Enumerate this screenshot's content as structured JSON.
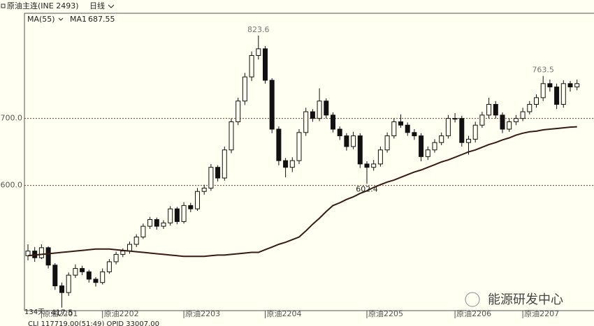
{
  "chart_data": {
    "type": "candlestick",
    "title": "原油主连(INE 2493)",
    "period": "日线",
    "indicator": "MA(55)",
    "ma_series": {
      "name": "MA1",
      "color": "#3a1a10"
    },
    "days_label": "134天",
    "status": "CLI  117719.00(51:49)   OPID  33007.00",
    "watermark": "能源研发中心",
    "ylim": [
      413,
      856
    ],
    "yticks": [
      {
        "value": 600,
        "label": "600.0"
      },
      {
        "value": 700,
        "label": "700.0"
      }
    ],
    "grid": true,
    "up_color": "#fffff2",
    "down_color": "#111111",
    "categories": [
      null,
      null,
      "原油2201",
      null,
      null,
      null,
      null,
      null,
      null,
      null,
      null,
      "原油2202",
      null,
      null,
      null,
      null,
      null,
      null,
      null,
      null,
      null,
      null,
      null,
      "原油2203",
      null,
      null,
      null,
      null,
      null,
      null,
      null,
      null,
      null,
      null,
      null,
      "原油2204",
      null,
      null,
      null,
      null,
      null,
      null,
      null,
      null,
      null,
      null,
      null,
      null,
      null,
      null,
      "原油2205",
      null,
      null,
      null,
      null,
      null,
      null,
      null,
      null,
      null,
      null,
      null,
      null,
      "原油2206",
      null,
      null,
      null,
      null,
      null,
      null,
      null,
      null,
      null,
      "原油2207",
      null,
      null,
      null,
      null,
      null,
      null,
      null,
      null
    ],
    "ohlc": [
      [
        495,
        512,
        488,
        502
      ],
      [
        502,
        508,
        486,
        492
      ],
      [
        492,
        512,
        490,
        507
      ],
      [
        507,
        509,
        476,
        481
      ],
      [
        481,
        484,
        444,
        450
      ],
      [
        450,
        455,
        417.5,
        440
      ],
      [
        440,
        470,
        435,
        466
      ],
      [
        466,
        482,
        462,
        476
      ],
      [
        476,
        480,
        466,
        471
      ],
      [
        471,
        474,
        455,
        460
      ],
      [
        460,
        463,
        449,
        455
      ],
      [
        455,
        476,
        452,
        471
      ],
      [
        471,
        490,
        468,
        486
      ],
      [
        486,
        501,
        482,
        497
      ],
      [
        497,
        506,
        493,
        502
      ],
      [
        502,
        516,
        498,
        512
      ],
      [
        512,
        527,
        508,
        523
      ],
      [
        523,
        543,
        520,
        539
      ],
      [
        539,
        553,
        535,
        549
      ],
      [
        549,
        552,
        534,
        539
      ],
      [
        539,
        548,
        535,
        544
      ],
      [
        544,
        569,
        540,
        565
      ],
      [
        565,
        568,
        542,
        546
      ],
      [
        546,
        575,
        543,
        570
      ],
      [
        570,
        574,
        560,
        565
      ],
      [
        565,
        596,
        562,
        591
      ],
      [
        591,
        601,
        586,
        596
      ],
      [
        596,
        632,
        592,
        627
      ],
      [
        627,
        630,
        606,
        611
      ],
      [
        611,
        658,
        607,
        653
      ],
      [
        653,
        700,
        648,
        695
      ],
      [
        695,
        731,
        690,
        726
      ],
      [
        726,
        768,
        720,
        762
      ],
      [
        762,
        800,
        756,
        794
      ],
      [
        794,
        823.6,
        788,
        804
      ],
      [
        804,
        808,
        752,
        757
      ],
      [
        757,
        760,
        678,
        684
      ],
      [
        684,
        688,
        630,
        637
      ],
      [
        637,
        641,
        612,
        627
      ],
      [
        627,
        642,
        620,
        637
      ],
      [
        637,
        684,
        632,
        679
      ],
      [
        679,
        716,
        674,
        710
      ],
      [
        710,
        714,
        695,
        700
      ],
      [
        700,
        745,
        696,
        726
      ],
      [
        726,
        730,
        700,
        705
      ],
      [
        705,
        709,
        679,
        684
      ],
      [
        684,
        688,
        668,
        674
      ],
      [
        674,
        678,
        652,
        658
      ],
      [
        658,
        680,
        654,
        674
      ],
      [
        674,
        678,
        626,
        632
      ],
      [
        632,
        636,
        602.4,
        627
      ],
      [
        627,
        638,
        622,
        632
      ],
      [
        632,
        658,
        628,
        653
      ],
      [
        653,
        679,
        649,
        674
      ],
      [
        674,
        700,
        670,
        695
      ],
      [
        695,
        706,
        686,
        690
      ],
      [
        690,
        694,
        674,
        679
      ],
      [
        679,
        684,
        668,
        674
      ],
      [
        674,
        678,
        636,
        643
      ],
      [
        643,
        658,
        638,
        653
      ],
      [
        653,
        669,
        649,
        664
      ],
      [
        664,
        679,
        660,
        674
      ],
      [
        674,
        705,
        670,
        700
      ],
      [
        700,
        708,
        694,
        700
      ],
      [
        700,
        704,
        658,
        664
      ],
      [
        664,
        674,
        646,
        669
      ],
      [
        669,
        695,
        664,
        690
      ],
      [
        690,
        710,
        686,
        705
      ],
      [
        705,
        731,
        700,
        721
      ],
      [
        721,
        726,
        700,
        705
      ],
      [
        705,
        709,
        678,
        684
      ],
      [
        684,
        700,
        680,
        695
      ],
      [
        695,
        705,
        690,
        700
      ],
      [
        700,
        716,
        696,
        710
      ],
      [
        710,
        726,
        706,
        721
      ],
      [
        721,
        736,
        716,
        731
      ],
      [
        731,
        763.5,
        726,
        752
      ],
      [
        752,
        758,
        740,
        747
      ],
      [
        747,
        752,
        714,
        721
      ],
      [
        721,
        757,
        716,
        752
      ],
      [
        752,
        756,
        740,
        747
      ],
      [
        747,
        758,
        742,
        752
      ]
    ],
    "ma": [
      495,
      496,
      497,
      498,
      499,
      500,
      501,
      502,
      503,
      504,
      505,
      505,
      505,
      504,
      503,
      502,
      501,
      500,
      499,
      498,
      497,
      496,
      495,
      494,
      494,
      494,
      494,
      495,
      496,
      496,
      497,
      498,
      499,
      500,
      500,
      504,
      508,
      512,
      515,
      519,
      523,
      532,
      542,
      551,
      561,
      570,
      574,
      579,
      583,
      588,
      592,
      597,
      601,
      605,
      608,
      612,
      616,
      620,
      623,
      627,
      631,
      635,
      638,
      642,
      646,
      650,
      653,
      657,
      661,
      664,
      668,
      671,
      675,
      678,
      680,
      681,
      683,
      684,
      685,
      686,
      687,
      687.55
    ]
  }
}
